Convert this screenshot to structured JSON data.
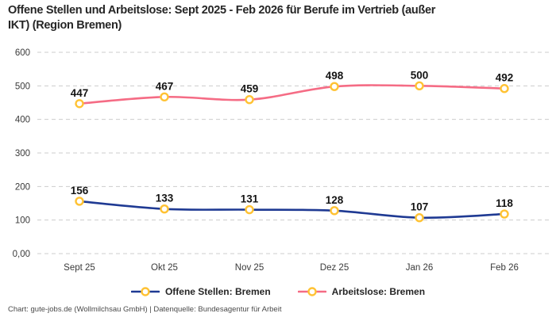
{
  "title": "Offene Stellen und Arbeitslose: Sept 2025 - Feb 2026 für Berufe im Vertrieb (außer IKT) (Region Bremen)",
  "title_lines": [
    "Offene Stellen und Arbeitslose: Sept 2025 - Feb 2026 für Berufe im Vertrieb (außer",
    "IKT) (Region Bremen)"
  ],
  "footer": "Chart: gute-jobs.de (Wollmilchsau GmbH) | Datenquelle: Bundesagentur für Arbeit",
  "colors": {
    "blue_line": "#1F3A93",
    "pink_line": "#F56C85",
    "marker_stroke": "#FFC233",
    "marker_fill": "#FFFFFF",
    "gridline": "#CCCCCC",
    "axis_text": "#3A3A3A",
    "data_label_text": "#141414",
    "title_text": "#262626",
    "footer_text": "#4A4A4A"
  },
  "chart_data": {
    "type": "line",
    "title": "Offene Stellen und Arbeitslose: Sept 2025 - Feb 2026 für Berufe im Vertrieb (außer IKT) (Region Bremen)",
    "categories": [
      "Sept 25",
      "Okt 25",
      "Nov 25",
      "Dez 25",
      "Jan 26",
      "Feb 26"
    ],
    "series": [
      {
        "name": "Offene Stellen: Bremen",
        "values": [
          156,
          133,
          131,
          128,
          107,
          118
        ],
        "color": "#1F3A93"
      },
      {
        "name": "Arbeitslose: Bremen",
        "values": [
          447,
          467,
          459,
          498,
          500,
          492
        ],
        "color": "#F56C85"
      }
    ],
    "y_ticks_bottom_up": [
      "0,00",
      "100",
      "200",
      "300",
      "400",
      "500",
      "600"
    ],
    "ylim": [
      0,
      600
    ],
    "xlabel": "",
    "ylabel": "",
    "grid": "horizontal-dashed",
    "legend_position": "bottom",
    "marker": "circle-white-fill-gold-stroke",
    "data_labels": true
  }
}
